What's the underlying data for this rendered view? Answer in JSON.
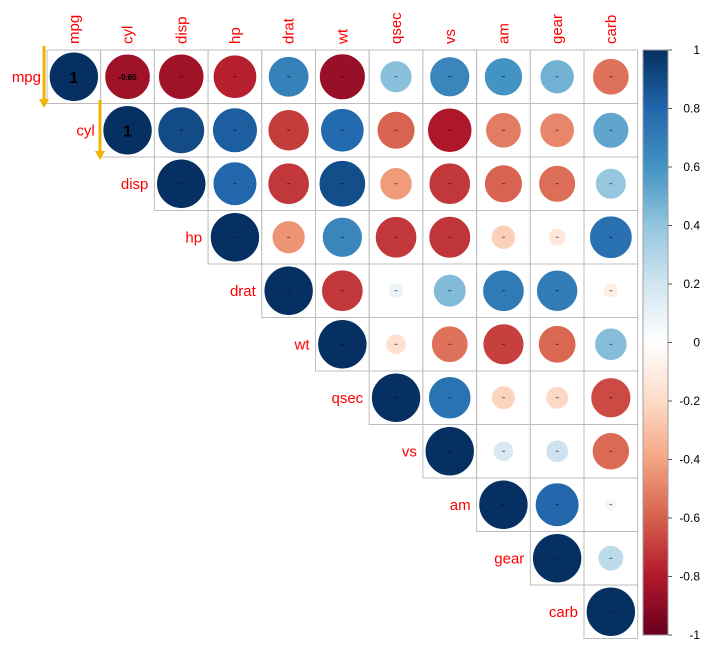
{
  "chart_data": {
    "type": "heatmap",
    "subtype": "correlation-upper-circle",
    "variables": [
      "mpg",
      "cyl",
      "disp",
      "hp",
      "drat",
      "wt",
      "qsec",
      "vs",
      "am",
      "gear",
      "carb"
    ],
    "matrix": [
      [
        1,
        -0.85,
        -0.85,
        -0.78,
        0.68,
        -0.87,
        0.42,
        0.66,
        0.6,
        0.48,
        -0.55
      ],
      [
        -0.85,
        1,
        0.9,
        0.83,
        -0.7,
        0.78,
        -0.59,
        -0.81,
        -0.52,
        -0.49,
        0.53
      ],
      [
        -0.85,
        0.9,
        1,
        0.79,
        -0.71,
        0.89,
        -0.43,
        -0.71,
        -0.59,
        -0.56,
        0.39
      ],
      [
        -0.78,
        0.83,
        0.79,
        1,
        -0.45,
        0.66,
        -0.71,
        -0.72,
        -0.24,
        -0.13,
        0.75
      ],
      [
        0.68,
        -0.7,
        -0.71,
        -0.45,
        1,
        -0.71,
        0.09,
        0.44,
        0.71,
        0.7,
        -0.09
      ],
      [
        -0.87,
        0.78,
        0.89,
        0.66,
        -0.71,
        1,
        -0.17,
        -0.55,
        -0.69,
        -0.58,
        0.43
      ],
      [
        0.42,
        -0.59,
        -0.43,
        -0.71,
        0.09,
        -0.17,
        1,
        0.74,
        -0.23,
        -0.21,
        -0.66
      ],
      [
        0.66,
        -0.81,
        -0.71,
        -0.72,
        0.44,
        -0.55,
        0.74,
        1,
        0.17,
        0.21,
        -0.57
      ],
      [
        0.6,
        -0.52,
        -0.59,
        -0.24,
        0.71,
        -0.69,
        -0.23,
        0.17,
        1,
        0.79,
        0.06
      ],
      [
        0.48,
        -0.49,
        -0.56,
        -0.13,
        0.7,
        -0.58,
        -0.21,
        0.21,
        0.79,
        1,
        0.27
      ],
      [
        -0.55,
        0.53,
        0.39,
        0.75,
        -0.09,
        0.43,
        -0.66,
        -0.57,
        0.06,
        0.27,
        1
      ]
    ],
    "cell_labels": [
      {
        "row": 0,
        "col": 0,
        "text": "1"
      },
      {
        "row": 0,
        "col": 1,
        "text": "-0.85"
      },
      {
        "row": 1,
        "col": 1,
        "text": "1"
      }
    ],
    "colorbar": {
      "range": [
        -1,
        1
      ],
      "ticks": [
        "1",
        "0.8",
        "0.6",
        "0.4",
        "0.2",
        "0",
        "-0.2",
        "-0.4",
        "-0.6",
        "-0.8",
        "-1"
      ],
      "placement": "right"
    },
    "colors": [
      "#67001f",
      "#b2182b",
      "#d6604d",
      "#f4a582",
      "#fddbc7",
      "#ffffff",
      "#d1e5f0",
      "#92c5de",
      "#4393c3",
      "#2166ac",
      "#053061"
    ],
    "label_color": "#ff0000",
    "arrow_color": "#f0b400"
  }
}
